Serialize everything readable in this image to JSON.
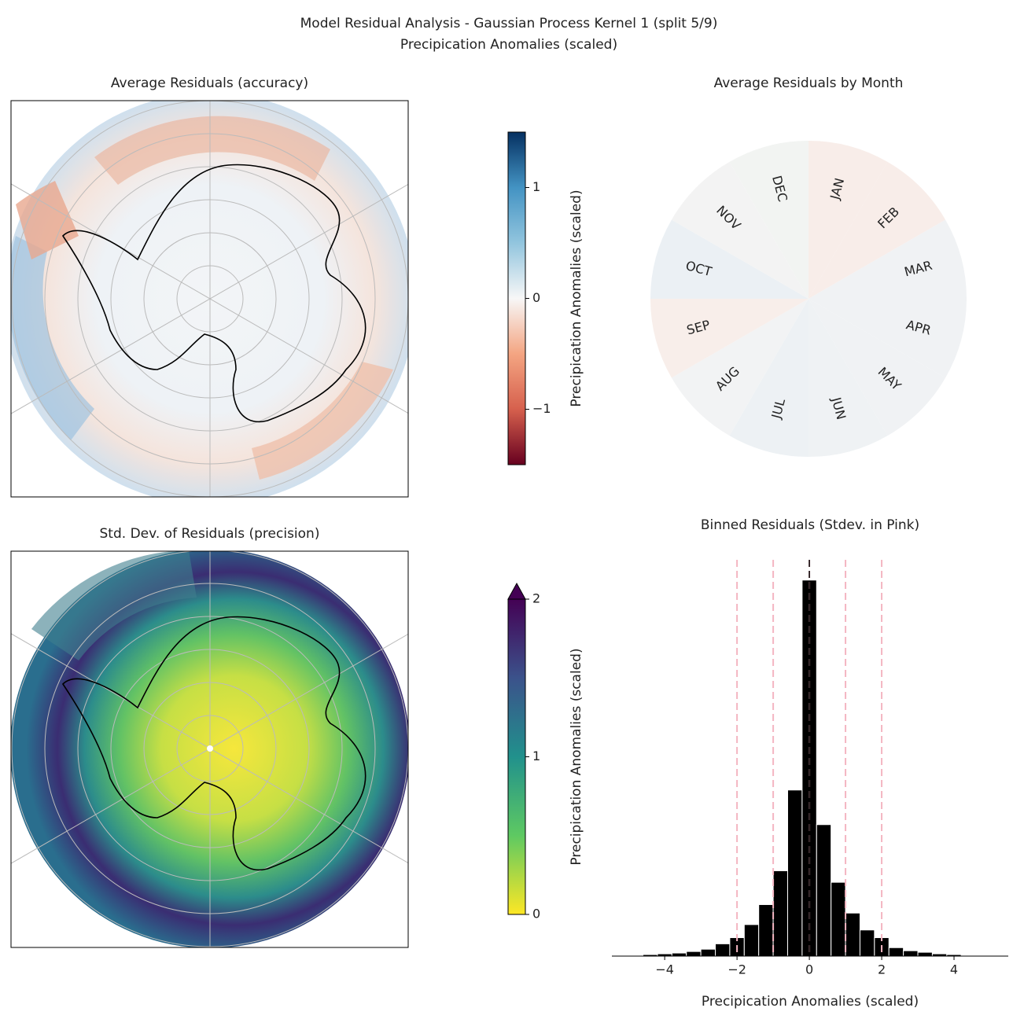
{
  "title": "Model Residual Analysis - Gaussian Process Kernel 1 (split 5/9)",
  "subtitle": "Precipication Anomalies (scaled)",
  "chart_data": [
    {
      "type": "map",
      "title": "Average Residuals (accuracy)",
      "colorbar": {
        "label": "Precipication Anomalies (scaled)",
        "lim": [
          -1.5,
          1.5
        ],
        "cmap": "RdBu",
        "ticks": [
          {
            "value": -1,
            "label": "−1"
          },
          0,
          1
        ]
      }
    },
    {
      "type": "pie",
      "title": "Average Residuals by Month",
      "categories": [
        "JAN",
        "FEB",
        "MAR",
        "APR",
        "MAY",
        "JUN",
        "JUL",
        "AUG",
        "SEP",
        "OCT",
        "NOV",
        "DEC"
      ],
      "values": [
        1,
        1,
        1,
        1,
        1,
        1,
        1,
        1,
        1,
        1,
        1,
        1
      ],
      "colors": [
        "#f8ede9",
        "#f8ede9",
        "#f0f2f4",
        "#f0f2f4",
        "#f0f2f4",
        "#eff2f4",
        "#edf1f4",
        "#f2f3f4",
        "#f8eeea",
        "#ebf0f4",
        "#f3f3f3",
        "#f2f4f2"
      ]
    },
    {
      "type": "map",
      "title": "Std. Dev. of Residuals (precision)",
      "colorbar": {
        "label": "Precipication Anomalies (scaled)",
        "lim": [
          0,
          2
        ],
        "cmap": "viridis_r",
        "extend": "max",
        "ticks": [
          0,
          1,
          2
        ]
      }
    },
    {
      "type": "histogram",
      "title": "Binned Residuals (Stdev. in Pink)",
      "xlabel": "Precipication Anomalies (scaled)",
      "bins": [
        -5,
        -4.6,
        -4.2,
        -3.8,
        -3.4,
        -3,
        -2.6,
        -2.2,
        -1.8,
        -1.4,
        -1,
        -0.6,
        -0.2,
        0.2,
        0.6,
        1,
        1.4,
        1.8,
        2.2,
        2.6,
        3,
        3.4,
        3.8,
        4.2,
        4.6,
        5
      ],
      "values": [
        1,
        2,
        3,
        4,
        6,
        9,
        16,
        24,
        41,
        67,
        111,
        216,
        489,
        171,
        96,
        56,
        34,
        24,
        11,
        7,
        5,
        3,
        2,
        1,
        1
      ],
      "color": "#000000",
      "xlim": [
        -5.46,
        5.5
      ],
      "ylim": [
        0,
        500
      ],
      "xticks": [
        {
          "value": -4,
          "label": "−4"
        },
        {
          "value": -2,
          "label": "−2"
        },
        0,
        2,
        4
      ],
      "stdev_lines": [
        -2,
        -1,
        0,
        1,
        2
      ],
      "stdev_color": "#f4b6c2",
      "mean_line": 0
    }
  ]
}
